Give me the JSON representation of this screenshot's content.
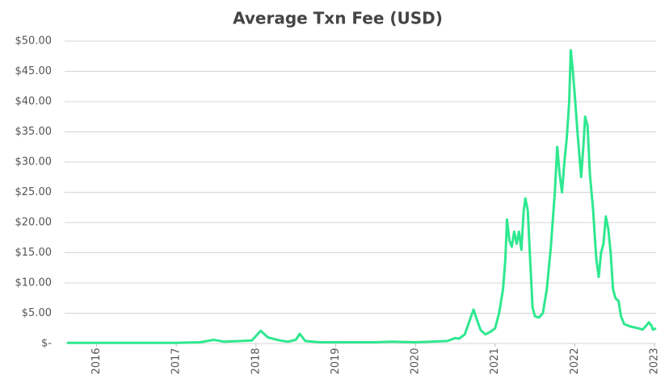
{
  "chart_data": {
    "type": "line",
    "title": "Average Txn Fee (USD)",
    "x": [
      2015.63,
      2016.0,
      2017.0,
      2017.3,
      2017.47,
      2017.6,
      2017.8,
      2017.95,
      2018.06,
      2018.15,
      2018.3,
      2018.4,
      2018.5,
      2018.55,
      2018.62,
      2018.8,
      2019.0,
      2019.5,
      2019.7,
      2020.0,
      2020.2,
      2020.4,
      2020.5,
      2020.55,
      2020.62,
      2020.66,
      2020.7,
      2020.73,
      2020.77,
      2020.82,
      2020.88,
      2020.95,
      2021.0,
      2021.05,
      2021.1,
      2021.13,
      2021.15,
      2021.18,
      2021.21,
      2021.24,
      2021.27,
      2021.3,
      2021.33,
      2021.36,
      2021.38,
      2021.41,
      2021.44,
      2021.47,
      2021.5,
      2021.55,
      2021.6,
      2021.65,
      2021.7,
      2021.75,
      2021.78,
      2021.81,
      2021.84,
      2021.87,
      2021.9,
      2021.93,
      2021.95,
      2021.97,
      2022.0,
      2022.04,
      2022.08,
      2022.11,
      2022.13,
      2022.16,
      2022.19,
      2022.23,
      2022.27,
      2022.3,
      2022.33,
      2022.36,
      2022.39,
      2022.42,
      2022.45,
      2022.48,
      2022.51,
      2022.55,
      2022.58,
      2022.62,
      2022.7,
      2022.8,
      2022.85,
      2022.9,
      2022.93,
      2022.96,
      2022.98,
      2023.02
    ],
    "values": [
      0.1,
      0.1,
      0.1,
      0.2,
      0.6,
      0.3,
      0.4,
      0.5,
      2.1,
      1.0,
      0.5,
      0.3,
      0.6,
      1.6,
      0.4,
      0.2,
      0.2,
      0.2,
      0.3,
      0.2,
      0.3,
      0.4,
      0.9,
      0.8,
      1.5,
      3.0,
      4.5,
      5.6,
      4.0,
      2.2,
      1.5,
      2.0,
      2.5,
      5.0,
      9.0,
      14.0,
      20.5,
      17.0,
      16.0,
      18.5,
      16.5,
      18.5,
      15.5,
      22.0,
      24.0,
      22.0,
      14.0,
      6.0,
      4.5,
      4.3,
      5.0,
      9.0,
      16.0,
      25.0,
      32.5,
      28.0,
      25.0,
      30.0,
      34.0,
      40.0,
      48.5,
      46.0,
      41.0,
      34.0,
      27.5,
      33.0,
      37.5,
      36.0,
      28.0,
      22.0,
      14.0,
      11.0,
      15.0,
      16.5,
      21.0,
      19.0,
      15.0,
      9.0,
      7.5,
      7.0,
      4.5,
      3.2,
      2.8,
      2.5,
      2.3,
      3.0,
      3.5,
      3.0,
      2.3,
      2.5
    ],
    "color": "#2ee88f",
    "xlim": [
      2015.6,
      2023.02
    ],
    "xticks": [
      2016,
      2017,
      2018,
      2019,
      2020,
      2021,
      2022,
      2023
    ],
    "ylim": [
      0,
      50
    ],
    "yticks": [
      {
        "value": 0,
        "label": "$-"
      },
      {
        "value": 5,
        "label": "$5.00"
      },
      {
        "value": 10,
        "label": "$10.00"
      },
      {
        "value": 15,
        "label": "$15.00"
      },
      {
        "value": 20,
        "label": "$20.00"
      },
      {
        "value": 25,
        "label": "$25.00"
      },
      {
        "value": 30,
        "label": "$30.00"
      },
      {
        "value": 35,
        "label": "$35.00"
      },
      {
        "value": 40,
        "label": "$40.00"
      },
      {
        "value": 45,
        "label": "$45.00"
      },
      {
        "value": 50,
        "label": "$50.00"
      }
    ],
    "grid": true
  }
}
